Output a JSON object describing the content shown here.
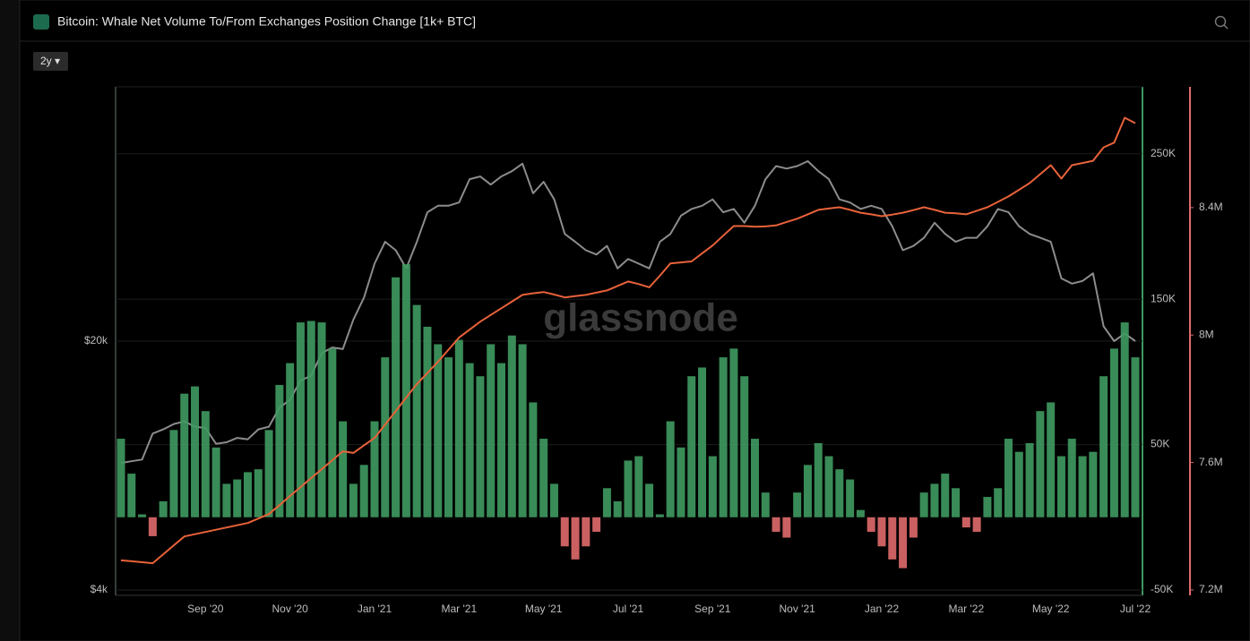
{
  "chart_data": {
    "type": "combo",
    "title": "Bitcoin: Whale Net Volume To/From Exchanges Position Change [1k+ BTC]",
    "range_button": "2y ▾",
    "watermark": "glassnode",
    "categories": [
      null,
      null,
      null,
      null,
      null,
      null,
      null,
      null,
      "Sep '20",
      null,
      null,
      null,
      null,
      null,
      null,
      null,
      "Nov '20",
      null,
      null,
      null,
      null,
      null,
      null,
      null,
      "Jan '21",
      null,
      null,
      null,
      null,
      null,
      null,
      null,
      "Mar '21",
      null,
      null,
      null,
      null,
      null,
      null,
      null,
      "May '21",
      null,
      null,
      null,
      null,
      null,
      null,
      null,
      "Jul '21",
      null,
      null,
      null,
      null,
      null,
      null,
      null,
      "Sep '21",
      null,
      null,
      null,
      null,
      null,
      null,
      null,
      "Nov '21",
      null,
      null,
      null,
      null,
      null,
      null,
      null,
      "Jan '22",
      null,
      null,
      null,
      null,
      null,
      null,
      null,
      "Mar '22",
      null,
      null,
      null,
      null,
      null,
      null,
      null,
      "May '22",
      null,
      null,
      null,
      null,
      null,
      null,
      null,
      "Jul '22"
    ],
    "ylog": true,
    "ylim": [
      3865,
      103500
    ],
    "yticks": [
      {
        "value": 4000,
        "label": "$4k"
      },
      {
        "value": 20000,
        "label": "$20k"
      }
    ],
    "y2lim": [
      -53700,
      296000
    ],
    "y2ticks": [
      {
        "value": -50000,
        "label": "-50K"
      },
      {
        "value": 50000,
        "label": "50K"
      },
      {
        "value": 150000,
        "label": "150K"
      },
      {
        "value": 250000,
        "label": "250K"
      }
    ],
    "y3lim": [
      7183000,
      8779000
    ],
    "y3ticks": [
      {
        "value": 7200000,
        "label": "7.2M"
      },
      {
        "value": 7600000,
        "label": "7.6M"
      },
      {
        "value": 8000000,
        "label": "8M"
      },
      {
        "value": 8400000,
        "label": "8.4M"
      }
    ],
    "grid": true,
    "series": [
      {
        "type": "bar",
        "axis": "y2",
        "color": "#3f9a60",
        "negative_color": "#e06a6c",
        "values": [
          54000,
          30000,
          2000,
          -13000,
          11000,
          60000,
          85000,
          90000,
          73000,
          48000,
          23000,
          26000,
          31000,
          33000,
          60000,
          91000,
          106000,
          134000,
          135000,
          134000,
          116000,
          66000,
          23000,
          36000,
          66000,
          110000,
          165000,
          174000,
          146000,
          131000,
          119000,
          110000,
          122000,
          106000,
          97000,
          119000,
          106000,
          125000,
          119000,
          79000,
          54000,
          23000,
          -20000,
          -29000,
          -20000,
          -10000,
          20000,
          11000,
          39000,
          42000,
          23000,
          2000,
          66000,
          48000,
          97000,
          103000,
          42000,
          110000,
          116000,
          97000,
          54000,
          17000,
          -10000,
          -14000,
          17000,
          36000,
          51000,
          42000,
          33000,
          26000,
          5000,
          -10000,
          -20000,
          -29000,
          -35000,
          -14000,
          17000,
          23000,
          30000,
          20000,
          -7000,
          -10000,
          14000,
          20000,
          54000,
          45000,
          51000,
          73000,
          79000,
          42000,
          54000,
          42000,
          45000,
          97000,
          116000,
          134000,
          110000
        ]
      },
      {
        "type": "line",
        "axis": "y",
        "color": "#8c8c8c",
        "values": [
          9100,
          9200,
          9300,
          11000,
          11300,
          11700,
          11900,
          11500,
          11400,
          10300,
          10400,
          10700,
          10600,
          11300,
          11500,
          13000,
          13700,
          15500,
          16000,
          18500,
          19200,
          19000,
          23000,
          26500,
          33000,
          38000,
          36000,
          32000,
          38000,
          46000,
          48000,
          48000,
          49000,
          57000,
          58000,
          55000,
          58000,
          60000,
          63000,
          52000,
          56000,
          50000,
          40000,
          38000,
          36000,
          35000,
          37000,
          32000,
          34000,
          33000,
          32000,
          38000,
          40000,
          45000,
          47000,
          48000,
          50000,
          46000,
          47000,
          43000,
          48000,
          57000,
          62000,
          61000,
          62000,
          64000,
          60000,
          57000,
          50000,
          49000,
          47000,
          48000,
          47000,
          42000,
          36000,
          37000,
          39000,
          43000,
          40000,
          38000,
          39000,
          39000,
          42000,
          47000,
          46000,
          42000,
          40000,
          39000,
          38000,
          30000,
          29000,
          29500,
          31000,
          22000,
          20000,
          21000,
          20000
        ]
      },
      {
        "type": "line",
        "axis": "y3",
        "color": "#e8623a",
        "values": [
          7293000,
          7290000,
          7287000,
          7284000,
          7312000,
          7340000,
          7368000,
          7375000,
          7382000,
          7389000,
          7396000,
          7403000,
          7410000,
          7424000,
          7438000,
          7466000,
          7495000,
          7523000,
          7551000,
          7579000,
          7607000,
          7635000,
          7630000,
          7654000,
          7677000,
          7719000,
          7761000,
          7804000,
          7846000,
          7881000,
          7916000,
          7954000,
          7992000,
          8017000,
          8042000,
          8063000,
          8084000,
          8105000,
          8126000,
          8131000,
          8135000,
          8127000,
          8118000,
          8122000,
          8126000,
          8133000,
          8140000,
          8154000,
          8168000,
          8160000,
          8150000,
          8186000,
          8225000,
          8228000,
          8231000,
          8256000,
          8281000,
          8312000,
          8342000,
          8342000,
          8340000,
          8341000,
          8344000,
          8355000,
          8365000,
          8379000,
          8393000,
          8397000,
          8401000,
          8393000,
          8384000,
          8379000,
          8373000,
          8378000,
          8384000,
          8392000,
          8401000,
          8393000,
          8384000,
          8382000,
          8379000,
          8390000,
          8401000,
          8418000,
          8435000,
          8456000,
          8477000,
          8505000,
          8533000,
          8491000,
          8533000,
          8540000,
          8547000,
          8589000,
          8604000,
          8682000,
          8665000
        ]
      }
    ]
  }
}
